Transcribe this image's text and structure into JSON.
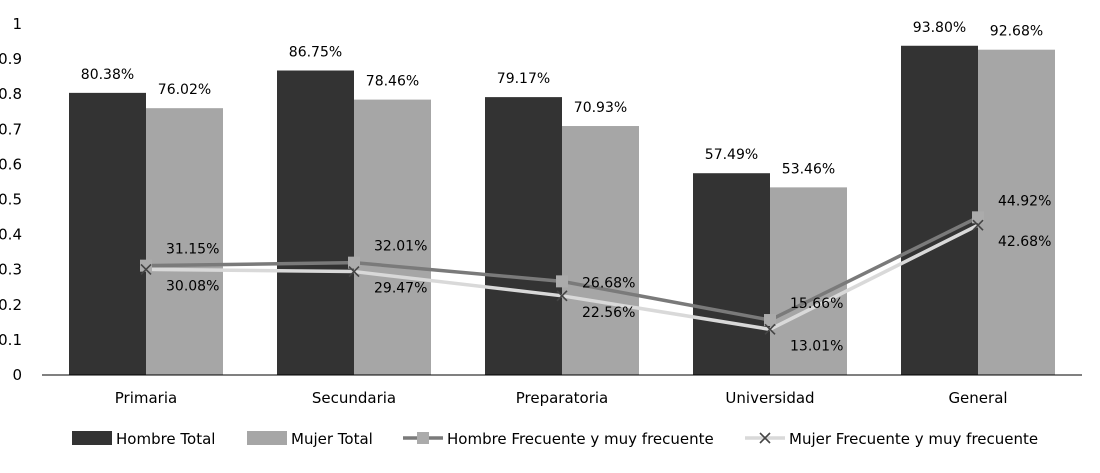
{
  "chart_data": {
    "type": "bar",
    "categories": [
      "Primaria",
      "Secundaria",
      "Preparatoria",
      "Universidad",
      "General"
    ],
    "ylim": [
      0,
      1
    ],
    "yticks": [
      "0",
      "0.1",
      "0.2",
      "0.3",
      "0.4",
      "0.5",
      "0.6",
      "0.7",
      "0.8",
      "0.9",
      "1"
    ],
    "legend_position": "bottom",
    "grid": false,
    "series": [
      {
        "name": "Hombre Total",
        "kind": "bar",
        "color": "#333333",
        "values": [
          0.8038,
          0.8675,
          0.7917,
          0.5749,
          0.938
        ],
        "labels": [
          "80.38%",
          "86.75%",
          "79.17%",
          "57.49%",
          "93.80%"
        ]
      },
      {
        "name": "Mujer Total",
        "kind": "bar",
        "color": "#a6a6a6",
        "values": [
          0.7602,
          0.7846,
          0.7093,
          0.5346,
          0.9268
        ],
        "labels": [
          "76.02%",
          "78.46%",
          "70.93%",
          "53.46%",
          "92.68%"
        ]
      },
      {
        "name": "Hombre Frecuente y muy frecuente",
        "kind": "line",
        "marker": "square",
        "color": "#7a7a7a",
        "values": [
          0.3115,
          0.3201,
          0.2668,
          0.1566,
          0.4492
        ],
        "labels": [
          "31.15%",
          "32.01%",
          "26.68%",
          "15.66%",
          "44.92%"
        ]
      },
      {
        "name": "Mujer Frecuente y muy frecuente",
        "kind": "line",
        "marker": "x",
        "color": "#d9d9d9",
        "values": [
          0.3008,
          0.2947,
          0.2256,
          0.1301,
          0.4268
        ],
        "labels": [
          "30.08%",
          "29.47%",
          "22.56%",
          "13.01%",
          "42.68%"
        ]
      }
    ]
  }
}
